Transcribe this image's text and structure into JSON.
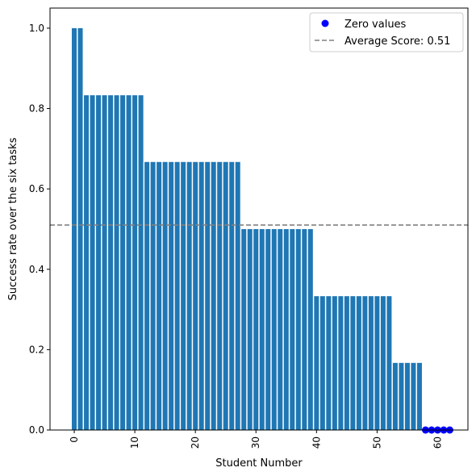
{
  "chart_data": {
    "type": "bar",
    "xlabel": "Student Number",
    "ylabel": "Success rate over the six tasks",
    "xlim": [
      -4.0,
      65.0
    ],
    "ylim": [
      0.0,
      1.05
    ],
    "grid": false,
    "legend_placement": "top-right",
    "x": [
      0,
      1,
      2,
      3,
      4,
      5,
      6,
      7,
      8,
      9,
      10,
      11,
      12,
      13,
      14,
      15,
      16,
      17,
      18,
      19,
      20,
      21,
      22,
      23,
      24,
      25,
      26,
      27,
      28,
      29,
      30,
      31,
      32,
      33,
      34,
      35,
      36,
      37,
      38,
      39,
      40,
      41,
      42,
      43,
      44,
      45,
      46,
      47,
      48,
      49,
      50,
      51,
      52,
      53,
      54,
      55,
      56,
      57,
      58,
      59,
      60,
      61,
      62
    ],
    "values": [
      1.0,
      1.0,
      0.833,
      0.833,
      0.833,
      0.833,
      0.833,
      0.833,
      0.833,
      0.833,
      0.833,
      0.833,
      0.667,
      0.667,
      0.667,
      0.667,
      0.667,
      0.667,
      0.667,
      0.667,
      0.667,
      0.667,
      0.667,
      0.667,
      0.667,
      0.667,
      0.667,
      0.667,
      0.5,
      0.5,
      0.5,
      0.5,
      0.5,
      0.5,
      0.5,
      0.5,
      0.5,
      0.5,
      0.5,
      0.5,
      0.333,
      0.333,
      0.333,
      0.333,
      0.333,
      0.333,
      0.333,
      0.333,
      0.333,
      0.333,
      0.333,
      0.333,
      0.333,
      0.167,
      0.167,
      0.167,
      0.167,
      0.167,
      0.0,
      0.0,
      0.0,
      0.0,
      0.0
    ],
    "bar_color": "#1f77b4",
    "zero_values": {
      "label": "Zero values",
      "x": [
        58,
        59,
        60,
        61,
        62
      ],
      "y": [
        0,
        0,
        0,
        0,
        0
      ],
      "color": "#0000ff"
    },
    "average_line": {
      "label": "Average Score: 0.51",
      "value": 0.51,
      "color": "#808080",
      "style": "dashed"
    },
    "x_ticks": [
      0,
      10,
      20,
      30,
      40,
      50,
      60
    ],
    "x_tick_labels": [
      "0",
      "10",
      "20",
      "30",
      "40",
      "50",
      "60"
    ],
    "y_ticks": [
      0.0,
      0.2,
      0.4,
      0.6,
      0.8,
      1.0
    ],
    "y_tick_labels": [
      "0.0",
      "0.2",
      "0.4",
      "0.6",
      "0.8",
      "1.0"
    ]
  }
}
